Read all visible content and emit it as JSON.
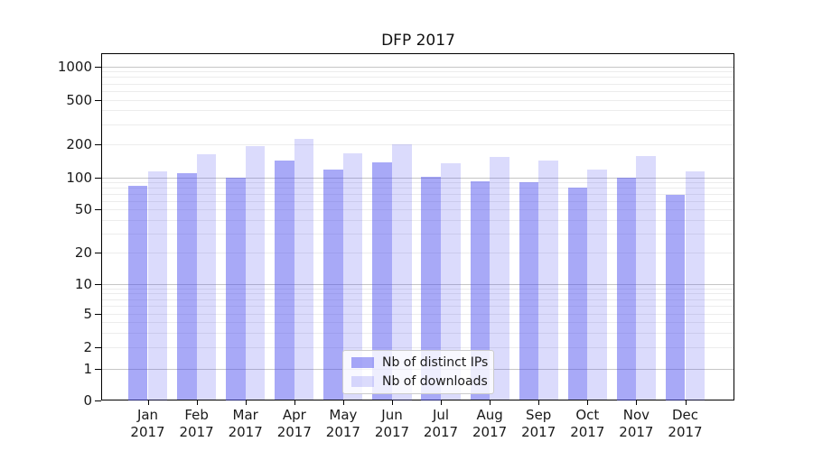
{
  "chart_data": {
    "type": "bar",
    "title": "DFP 2017",
    "categories": [
      "Jan 2017",
      "Feb 2017",
      "Mar 2017",
      "Apr 2017",
      "May 2017",
      "Jun 2017",
      "Jul 2017",
      "Aug 2017",
      "Sep 2017",
      "Oct 2017",
      "Nov 2017",
      "Dec 2017"
    ],
    "series": [
      {
        "name": "Nb of distinct IPs",
        "color": "#4A4CEF",
        "alpha": 0.48,
        "values": [
          83,
          108,
          100,
          142,
          117,
          136,
          101,
          92,
          90,
          80,
          100,
          69
        ]
      },
      {
        "name": "Nb of downloads",
        "color": "#4A4CEF",
        "alpha": 0.2,
        "values": [
          113,
          160,
          192,
          220,
          163,
          200,
          133,
          153,
          142,
          117,
          155,
          114
        ]
      }
    ],
    "yscale": "symlog",
    "yticks": [
      0,
      1,
      2,
      5,
      10,
      20,
      50,
      100,
      200,
      500,
      1000
    ],
    "ylim": [
      0,
      1300
    ],
    "xlabel": "",
    "ylabel": "",
    "grid": true,
    "legend_position": "lower-center"
  },
  "colors": {
    "major_grid": "#c6c6c6",
    "minor_grid": "#ececec",
    "axis": "#000000",
    "text": "#1a1a1a",
    "legend_border": "#cccccc"
  }
}
